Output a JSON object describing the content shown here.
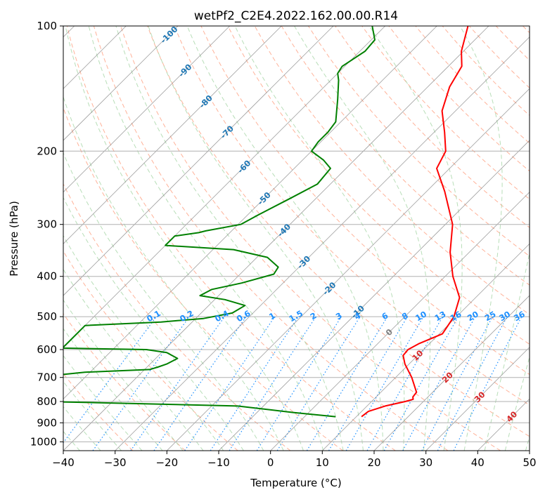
{
  "chart_data": {
    "type": "line",
    "subtype": "skew-t log-p",
    "title": "wetPf2_C2E4.2022.162.00.00.R14",
    "xlabel": "Temperature (°C)",
    "ylabel": "Pressure (hPa)",
    "xlim": [
      -40,
      50
    ],
    "ylim": [
      1050,
      100
    ],
    "y_scale": "log",
    "x_ticks": [
      -40,
      -30,
      -20,
      -10,
      0,
      10,
      20,
      30,
      40,
      50
    ],
    "y_ticks": [
      100,
      200,
      300,
      400,
      500,
      600,
      700,
      800,
      900,
      1000
    ],
    "grid": true,
    "skew_degrees": 45,
    "series": [
      {
        "color": "#ff0000",
        "points": [
          {
            "p": 870,
            "t": 11.0
          },
          {
            "p": 845,
            "t": 11.3
          },
          {
            "p": 820,
            "t": 13.5
          },
          {
            "p": 800,
            "t": 16.5
          },
          {
            "p": 790,
            "t": 17.6
          },
          {
            "p": 780,
            "t": 17.1
          },
          {
            "p": 760,
            "t": 16.9
          },
          {
            "p": 700,
            "t": 13.1
          },
          {
            "p": 650,
            "t": 9.2
          },
          {
            "p": 620,
            "t": 7.2
          },
          {
            "p": 600,
            "t": 7.0
          },
          {
            "p": 580,
            "t": 8.0
          },
          {
            "p": 550,
            "t": 10.6
          },
          {
            "p": 500,
            "t": 9.5
          },
          {
            "p": 450,
            "t": 6.9
          },
          {
            "p": 400,
            "t": 1.5
          },
          {
            "p": 350,
            "t": -3.7
          },
          {
            "p": 300,
            "t": -8.6
          },
          {
            "p": 250,
            "t": -16.5
          },
          {
            "p": 220,
            "t": -22.5
          },
          {
            "p": 200,
            "t": -24.1
          },
          {
            "p": 180,
            "t": -28.0
          },
          {
            "p": 160,
            "t": -32.6
          },
          {
            "p": 140,
            "t": -35.8
          },
          {
            "p": 125,
            "t": -37.4
          },
          {
            "p": 115,
            "t": -40.4
          },
          {
            "p": 100,
            "t": -44.0
          }
        ]
      },
      {
        "color": "#008000",
        "points": [
          {
            "p": 870,
            "t": 6.0
          },
          {
            "p": 850,
            "t": -3.0
          },
          {
            "p": 820,
            "t": -15.0
          },
          {
            "p": 805,
            "t": -43.0
          },
          {
            "p": 800,
            "t": -53.0
          },
          {
            "p": 750,
            "t": -56.0
          },
          {
            "p": 740,
            "t": -56.5
          },
          {
            "p": 730,
            "t": -60.0
          },
          {
            "p": 700,
            "t": -60.0
          },
          {
            "p": 680,
            "t": -51.0
          },
          {
            "p": 670,
            "t": -39.0
          },
          {
            "p": 660,
            "t": -37.8
          },
          {
            "p": 650,
            "t": -36.8
          },
          {
            "p": 630,
            "t": -35.8
          },
          {
            "p": 610,
            "t": -39.0
          },
          {
            "p": 600,
            "t": -43.5
          },
          {
            "p": 595,
            "t": -60.0
          },
          {
            "p": 525,
            "t": -60.0
          },
          {
            "p": 515,
            "t": -46.0
          },
          {
            "p": 505,
            "t": -38.5
          },
          {
            "p": 490,
            "t": -34.0
          },
          {
            "p": 470,
            "t": -33.0
          },
          {
            "p": 455,
            "t": -38.0
          },
          {
            "p": 445,
            "t": -43.6
          },
          {
            "p": 430,
            "t": -42.5
          },
          {
            "p": 415,
            "t": -38.0
          },
          {
            "p": 395,
            "t": -33.5
          },
          {
            "p": 380,
            "t": -34.0
          },
          {
            "p": 360,
            "t": -38.0
          },
          {
            "p": 345,
            "t": -46.0
          },
          {
            "p": 337,
            "t": -60.0
          },
          {
            "p": 320,
            "t": -60.0
          },
          {
            "p": 314,
            "t": -56.0
          },
          {
            "p": 311,
            "t": -55.0
          },
          {
            "p": 300,
            "t": -49.5
          },
          {
            "p": 285,
            "t": -48.0
          },
          {
            "p": 260,
            "t": -45.0
          },
          {
            "p": 240,
            "t": -42.5
          },
          {
            "p": 220,
            "t": -43.0
          },
          {
            "p": 210,
            "t": -46.0
          },
          {
            "p": 200,
            "t": -50.0
          },
          {
            "p": 190,
            "t": -50.5
          },
          {
            "p": 180,
            "t": -50.5
          },
          {
            "p": 170,
            "t": -51.0
          },
          {
            "p": 150,
            "t": -55.0
          },
          {
            "p": 135,
            "t": -58.5
          },
          {
            "p": 130,
            "t": -60.0
          },
          {
            "p": 125,
            "t": -60.5
          },
          {
            "p": 115,
            "t": -59.0
          },
          {
            "p": 108,
            "t": -59.3
          },
          {
            "p": 100,
            "t": -62.5
          }
        ]
      }
    ],
    "isotherm_labels": [
      {
        "text": "-100",
        "t": -100
      },
      {
        "text": "-90",
        "t": -90
      },
      {
        "text": "-80",
        "t": -80
      },
      {
        "text": "-70",
        "t": -70
      },
      {
        "text": "-60",
        "t": -60
      },
      {
        "text": "-50",
        "t": -50
      },
      {
        "text": "-40",
        "t": -40
      },
      {
        "text": "-30",
        "t": -30
      },
      {
        "text": "-20",
        "t": -20
      },
      {
        "text": "-10",
        "t": -10
      },
      {
        "text": "0",
        "t": 0
      },
      {
        "text": "10",
        "t": 10
      },
      {
        "text": "20",
        "t": 20
      },
      {
        "text": "30",
        "t": 30
      },
      {
        "text": "40",
        "t": 40
      }
    ],
    "mixing_ratio_labels": [
      "0.1",
      "0.2",
      "0.4",
      "0.6",
      "1",
      "1.5",
      "2",
      "3",
      "4",
      "6",
      "8",
      "10",
      "13",
      "16",
      "20",
      "25",
      "30",
      "36"
    ],
    "colors": {
      "temperature": "#ff0000",
      "dewpoint": "#008000",
      "isotherm_cold_label": "#1f77b4",
      "isotherm_warm_label": "#d62728",
      "isotherm_zero_label": "#7f7f7f",
      "mixing_ratio": "#1e90ff",
      "dry_adiabat": "#ff9f80",
      "moist_adiabat": "#a6d6a6",
      "grid": "#b0b0b0",
      "isotherm": "#808080"
    }
  }
}
